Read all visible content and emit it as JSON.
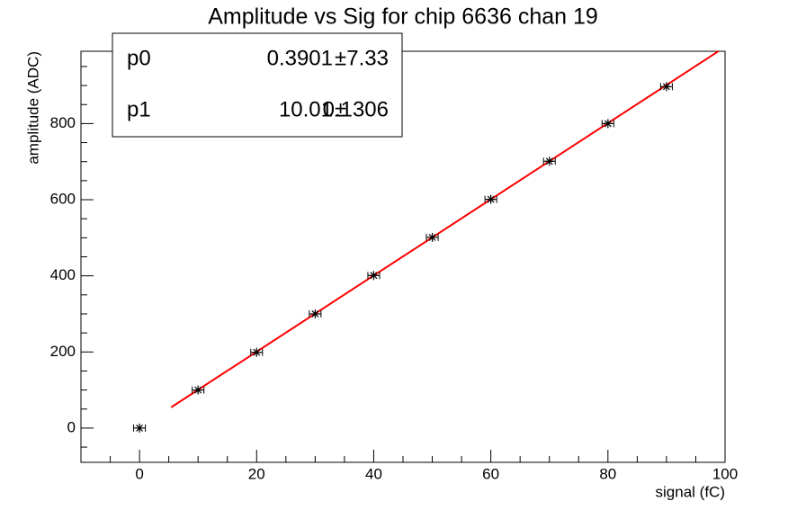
{
  "chart_data": {
    "type": "scatter",
    "title": "Amplitude vs Sig for chip 6636 chan 19",
    "x_label": "signal (fC)",
    "y_label": "amplitude (ADC)",
    "x": [
      0,
      10,
      20,
      30,
      40,
      50,
      60,
      70,
      80,
      90
    ],
    "series": [
      {
        "name": "amplitude",
        "color": "#000000",
        "values": [
          0,
          100,
          199,
          300,
          401,
          501,
          601,
          701,
          800,
          897
        ],
        "xerr": [
          1,
          1,
          1,
          1,
          1,
          1,
          1,
          1,
          1,
          1
        ]
      }
    ],
    "fit": {
      "color": "#ff0000",
      "xrange": [
        5.4,
        98.9
      ],
      "pm": "±",
      "params": [
        {
          "name": "p0",
          "value": 0.3901,
          "error": 7.33
        },
        {
          "name": "p1",
          "value": 10.01,
          "error": 0.1306
        }
      ]
    },
    "xlim": [
      -10,
      100
    ],
    "xticks": [
      0,
      20,
      40,
      60,
      80,
      100
    ],
    "xminorticks": [
      -10,
      -5,
      5,
      10,
      15,
      25,
      30,
      35,
      45,
      50,
      55,
      65,
      70,
      75,
      85,
      90,
      95
    ],
    "ylim": [
      -90,
      990
    ],
    "yticks": [
      0,
      200,
      400,
      600,
      800
    ],
    "yminorticks": [
      -50,
      50,
      100,
      150,
      250,
      300,
      350,
      450,
      500,
      550,
      650,
      700,
      750,
      850,
      900,
      950
    ]
  }
}
